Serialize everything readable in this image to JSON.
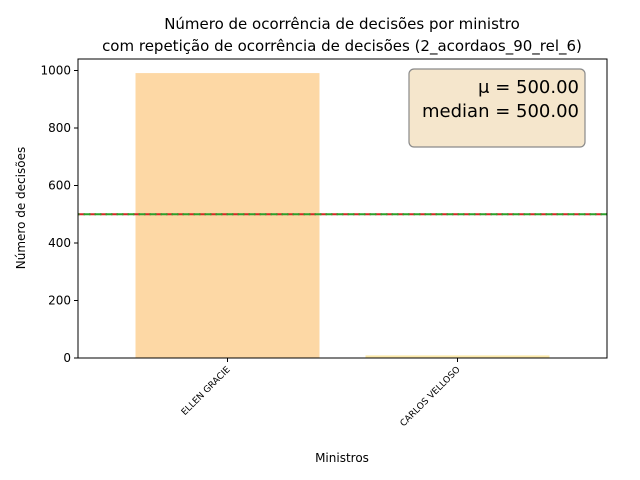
{
  "chart_data": {
    "type": "bar",
    "title_line1": "Número de ocorrência de decisões por ministro",
    "title_line2": "com repetição de ocorrência de decisões (2_acordaos_90_rel_6)",
    "xlabel": "Ministros",
    "ylabel": "Número de decisões",
    "categories": [
      "ELLEN GRACIE",
      "CARLOS VELLOSO"
    ],
    "values": [
      991,
      9
    ],
    "ylim": [
      0,
      1040
    ],
    "yticks": [
      0,
      200,
      400,
      600,
      800,
      1000
    ],
    "bar_colors": [
      "#fdd8a5",
      "#fbe9a9"
    ],
    "reference_lines": [
      {
        "value": 500,
        "color": "#d62728",
        "style": "dashed"
      },
      {
        "value": 500,
        "color": "#2ca02c",
        "style": "dashed"
      }
    ],
    "stats_box": {
      "mean_label": "μ = 500.00",
      "median_label": "median = 500.00",
      "background": "#f5e6cc",
      "placement": "top-right"
    },
    "grid": false
  }
}
